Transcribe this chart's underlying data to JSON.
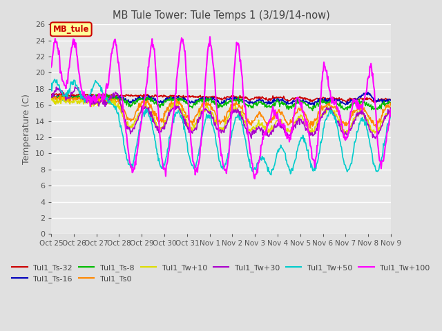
{
  "title": "MB Tule Tower: Tule Temps 1 (3/19/14-now)",
  "ylabel": "Temperature (C)",
  "ylim": [
    0,
    26
  ],
  "yticks": [
    0,
    2,
    4,
    6,
    8,
    10,
    12,
    14,
    16,
    18,
    20,
    22,
    24,
    26
  ],
  "xtick_labels": [
    "Oct 25",
    "Oct 26",
    "Oct 27",
    "Oct 28",
    "Oct 29",
    "Oct 30",
    "Oct 31",
    "Nov 1",
    "Nov 2",
    "Nov 3",
    "Nov 4",
    "Nov 5",
    "Nov 6",
    "Nov 7",
    "Nov 8",
    "Nov 9"
  ],
  "bg_color": "#e0e0e0",
  "plot_bg_color": "#e8e8e8",
  "grid_color": "white",
  "series": [
    {
      "label": "Tul1_Ts-32",
      "color": "#cc0000",
      "lw": 1.2
    },
    {
      "label": "Tul1_Ts-16",
      "color": "#0000bb",
      "lw": 1.2
    },
    {
      "label": "Tul1_Ts-8",
      "color": "#00bb00",
      "lw": 1.2
    },
    {
      "label": "Tul1_Ts0",
      "color": "#ff8800",
      "lw": 1.2
    },
    {
      "label": "Tul1_Tw+10",
      "color": "#dddd00",
      "lw": 1.2
    },
    {
      "label": "Tul1_Tw+30",
      "color": "#aa00cc",
      "lw": 1.2
    },
    {
      "label": "Tul1_Tw+50",
      "color": "#00cccc",
      "lw": 1.2
    },
    {
      "label": "Tul1_Tw+100",
      "color": "#ff00ff",
      "lw": 1.5
    }
  ],
  "legend_box": {
    "label": "MB_tule",
    "facecolor": "#ffff99",
    "edgecolor": "#cc0000",
    "textcolor": "#cc0000"
  }
}
